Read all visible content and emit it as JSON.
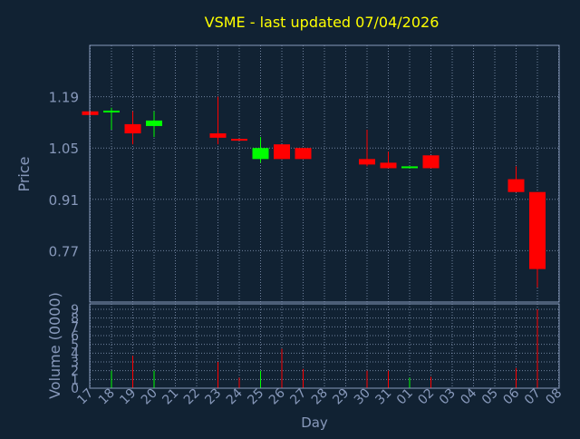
{
  "chart_data": {
    "type": "candlestick",
    "title": "VSME - last updated 07/04/2026",
    "xlabel": "Day",
    "price_ylabel": "Price",
    "volume_ylabel": "Volume (0000)",
    "price_yticks": [
      "1.19",
      "1.05",
      "0.91",
      "0.77"
    ],
    "price_ylim": [
      0.63,
      1.33
    ],
    "volume_yticks": [
      "0",
      "1",
      "2",
      "3",
      "4",
      "5",
      "6",
      "7",
      "8",
      "9"
    ],
    "volume_ylim": [
      0,
      9
    ],
    "x_labels": [
      "17",
      "18",
      "19",
      "20",
      "21",
      "22",
      "23",
      "24",
      "25",
      "26",
      "27",
      "28",
      "29",
      "30",
      "31",
      "01",
      "02",
      "03",
      "04",
      "05",
      "06",
      "07",
      "08"
    ],
    "grid": true,
    "colors": {
      "background": "#112233",
      "plot_border": "#8899bb",
      "grid": "#99aacc",
      "title": "#ffff00",
      "axis_text": "#8899bb",
      "up": "#00ff00",
      "down": "#ff0000"
    },
    "candles": [
      {
        "x": "17",
        "open": 1.15,
        "close": 1.14,
        "high": 1.15,
        "low": 1.14
      },
      {
        "x": "18",
        "open": 1.148,
        "close": 1.152,
        "high": 1.16,
        "low": 1.1
      },
      {
        "x": "19",
        "open": 1.115,
        "close": 1.09,
        "high": 1.15,
        "low": 1.06
      },
      {
        "x": "20",
        "open": 1.11,
        "close": 1.125,
        "high": 1.15,
        "low": 1.08
      },
      {
        "x": "23",
        "open": 1.09,
        "close": 1.078,
        "high": 1.19,
        "low": 1.06
      },
      {
        "x": "24",
        "open": 1.075,
        "close": 1.07,
        "high": 1.075,
        "low": 1.07
      },
      {
        "x": "25",
        "open": 1.02,
        "close": 1.05,
        "high": 1.08,
        "low": 1.01
      },
      {
        "x": "26",
        "open": 1.06,
        "close": 1.02,
        "high": 1.06,
        "low": 1.02
      },
      {
        "x": "27",
        "open": 1.05,
        "close": 1.02,
        "high": 1.05,
        "low": 1.02
      },
      {
        "x": "30",
        "open": 1.02,
        "close": 1.005,
        "high": 1.1,
        "low": 1.0
      },
      {
        "x": "31",
        "open": 1.01,
        "close": 0.995,
        "high": 1.04,
        "low": 0.995
      },
      {
        "x": "01",
        "open": 0.995,
        "close": 1.0,
        "high": 1.0,
        "low": 0.995
      },
      {
        "x": "02",
        "open": 1.03,
        "close": 0.995,
        "high": 1.03,
        "low": 0.995
      },
      {
        "x": "06",
        "open": 0.965,
        "close": 0.93,
        "high": 1.0,
        "low": 0.93
      },
      {
        "x": "07",
        "open": 0.93,
        "close": 0.72,
        "high": 0.93,
        "low": 0.67
      }
    ],
    "volumes": [
      {
        "x": "18",
        "value": 2.0,
        "dir": "up"
      },
      {
        "x": "19",
        "value": 3.7,
        "dir": "down"
      },
      {
        "x": "20",
        "value": 2.0,
        "dir": "up"
      },
      {
        "x": "23",
        "value": 3.0,
        "dir": "down"
      },
      {
        "x": "24",
        "value": 1.2,
        "dir": "down"
      },
      {
        "x": "25",
        "value": 2.0,
        "dir": "up"
      },
      {
        "x": "26",
        "value": 4.5,
        "dir": "down"
      },
      {
        "x": "27",
        "value": 2.2,
        "dir": "down"
      },
      {
        "x": "30",
        "value": 2.0,
        "dir": "down"
      },
      {
        "x": "31",
        "value": 2.0,
        "dir": "down"
      },
      {
        "x": "01",
        "value": 1.2,
        "dir": "up"
      },
      {
        "x": "02",
        "value": 1.3,
        "dir": "down"
      },
      {
        "x": "06",
        "value": 2.3,
        "dir": "down"
      },
      {
        "x": "07",
        "value": 9.0,
        "dir": "down"
      }
    ]
  }
}
